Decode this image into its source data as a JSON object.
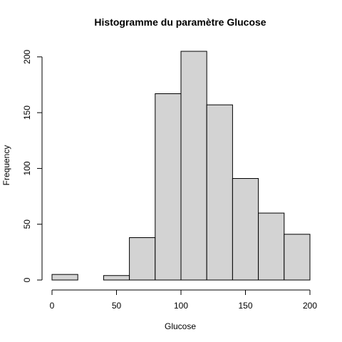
{
  "chart_data": {
    "type": "histogram",
    "title": "Histogramme du paramètre Glucose",
    "xlabel": "Glucose",
    "ylabel": "Frequency",
    "bins": [
      {
        "start": 0,
        "end": 20,
        "count": 5
      },
      {
        "start": 20,
        "end": 40,
        "count": 0
      },
      {
        "start": 40,
        "end": 60,
        "count": 4
      },
      {
        "start": 60,
        "end": 80,
        "count": 38
      },
      {
        "start": 80,
        "end": 100,
        "count": 167
      },
      {
        "start": 100,
        "end": 120,
        "count": 205
      },
      {
        "start": 120,
        "end": 140,
        "count": 157
      },
      {
        "start": 140,
        "end": 160,
        "count": 91
      },
      {
        "start": 160,
        "end": 180,
        "count": 60
      },
      {
        "start": 180,
        "end": 200,
        "count": 41
      }
    ],
    "xlim": [
      0,
      200
    ],
    "ylim": [
      0,
      205
    ],
    "xticks": [
      0,
      50,
      100,
      150,
      200
    ],
    "yticks": [
      0,
      50,
      100,
      150,
      200
    ],
    "bar_color": "#d3d3d3",
    "bar_border_color": "#000000",
    "grid": false,
    "legend": "none"
  }
}
